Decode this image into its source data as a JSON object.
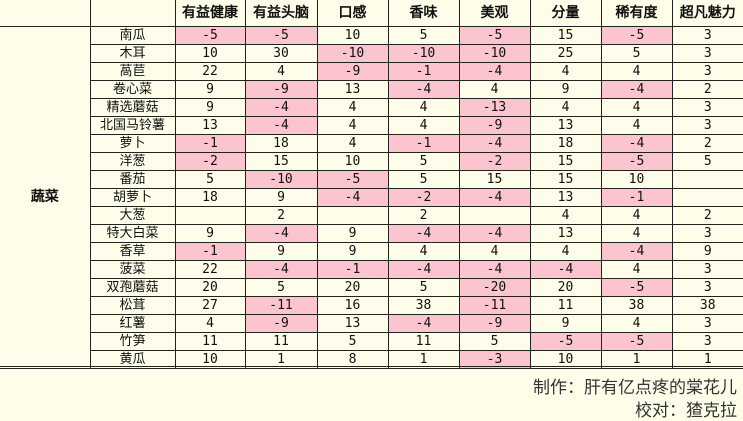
{
  "table": {
    "category": "蔬菜",
    "columns": [
      "有益健康",
      "有益头脑",
      "口感",
      "香味",
      "美观",
      "分量",
      "稀有度",
      "超凡魅力"
    ],
    "rows": [
      {
        "name": "南瓜",
        "values": [
          "-5",
          "-5",
          "10",
          "5",
          "-5",
          "15",
          "-5",
          "3"
        ]
      },
      {
        "name": "木耳",
        "values": [
          "10",
          "30",
          "-10",
          "-10",
          "-10",
          "25",
          "5",
          "3"
        ]
      },
      {
        "name": "萵苣",
        "values": [
          "22",
          "4",
          "-9",
          "-1",
          "-4",
          "4",
          "4",
          "3"
        ]
      },
      {
        "name": "卷心菜",
        "values": [
          "9",
          "-9",
          "13",
          "-4",
          "4",
          "9",
          "-4",
          "2"
        ]
      },
      {
        "name": "精选蘑菇",
        "values": [
          "9",
          "-4",
          "4",
          "4",
          "-13",
          "4",
          "4",
          "3"
        ]
      },
      {
        "name": "北国马铃薯",
        "values": [
          "13",
          "-4",
          "4",
          "4",
          "-9",
          "13",
          "4",
          "3"
        ]
      },
      {
        "name": "萝卜",
        "values": [
          "-1",
          "18",
          "4",
          "-1",
          "-4",
          "18",
          "-4",
          "2"
        ]
      },
      {
        "name": "洋葱",
        "values": [
          "-2",
          "15",
          "10",
          "5",
          "-2",
          "15",
          "-5",
          "5"
        ]
      },
      {
        "name": "番茄",
        "values": [
          "5",
          "-10",
          "-5",
          "5",
          "15",
          "15",
          "10",
          ""
        ]
      },
      {
        "name": "胡萝卜",
        "values": [
          "18",
          "9",
          "-4",
          "-2",
          "-4",
          "13",
          "-1",
          ""
        ]
      },
      {
        "name": "大葱",
        "values": [
          "",
          "2",
          "",
          "2",
          "",
          "4",
          "4",
          "2"
        ]
      },
      {
        "name": "特大白菜",
        "values": [
          "9",
          "-4",
          "9",
          "-4",
          "-4",
          "13",
          "4",
          "3"
        ]
      },
      {
        "name": "香草",
        "values": [
          "-1",
          "9",
          "9",
          "4",
          "4",
          "4",
          "-4",
          "9"
        ]
      },
      {
        "name": "菠菜",
        "values": [
          "22",
          "-4",
          "-1",
          "-4",
          "-4",
          "-4",
          "4",
          "3"
        ]
      },
      {
        "name": "双孢蘑菇",
        "values": [
          "20",
          "5",
          "20",
          "5",
          "-20",
          "20",
          "-5",
          "3"
        ]
      },
      {
        "name": "松茸",
        "values": [
          "27",
          "-11",
          "16",
          "38",
          "-11",
          "11",
          "38",
          "38"
        ]
      },
      {
        "name": "红薯",
        "values": [
          "4",
          "-9",
          "13",
          "-4",
          "-9",
          "9",
          "4",
          "3"
        ]
      },
      {
        "name": "竹笋",
        "values": [
          "11",
          "11",
          "5",
          "11",
          "5",
          "-5",
          "-5",
          "3"
        ]
      },
      {
        "name": "黄瓜",
        "values": [
          "10",
          "1",
          "8",
          "1",
          "-3",
          "10",
          "1",
          "1"
        ]
      }
    ]
  },
  "footer": {
    "author": "制作：肝有亿点疼的棠花儿",
    "proofreader": "校对：猹克拉"
  },
  "colors": {
    "background": "#fdfde9",
    "negative": "#fcc4cf"
  }
}
